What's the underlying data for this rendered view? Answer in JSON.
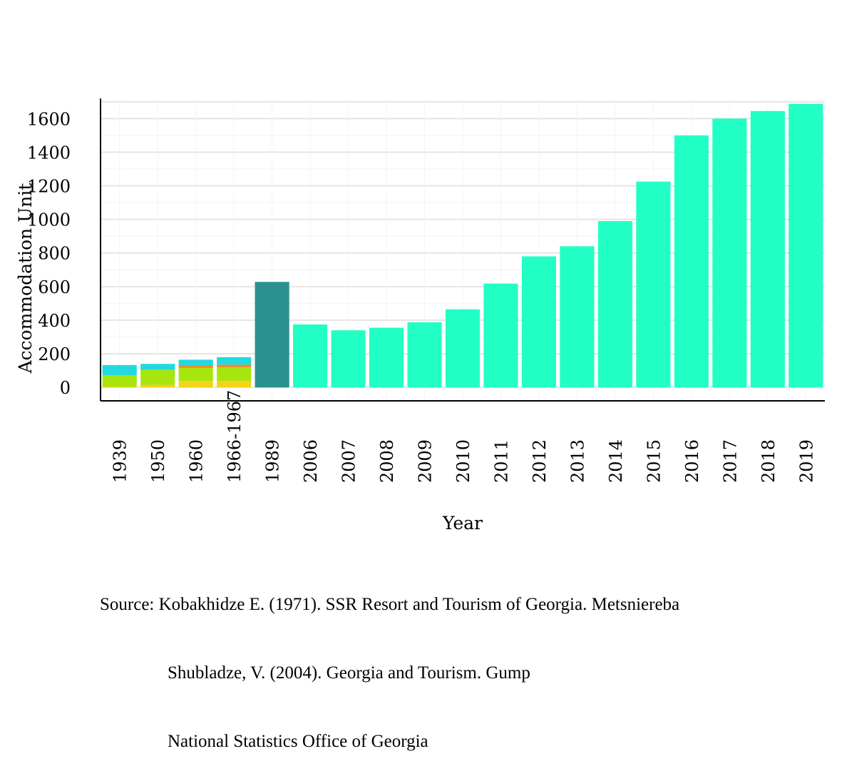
{
  "chart_data": {
    "type": "bar",
    "stacked": true,
    "xlabel": "Year",
    "ylabel": "Accommodation Unit",
    "ylim": [
      -80,
      1720
    ],
    "yticks": [
      0,
      200,
      400,
      600,
      800,
      1000,
      1200,
      1400,
      1600
    ],
    "grid": true,
    "categories": [
      "1939",
      "1950",
      "1960",
      "1966-1967",
      "1989",
      "2006",
      "2007",
      "2008",
      "2009",
      "2010",
      "2011",
      "2012",
      "2013",
      "2014",
      "2015",
      "2016",
      "2017",
      "2018",
      "2019"
    ],
    "series": [
      {
        "color": "#f5d31a",
        "values": [
          5,
          15,
          38,
          38,
          0,
          0,
          0,
          0,
          0,
          0,
          0,
          0,
          0,
          0,
          0,
          0,
          0,
          0,
          0
        ]
      },
      {
        "color": "#a6e60e",
        "values": [
          68,
          90,
          78,
          82,
          0,
          0,
          0,
          0,
          0,
          0,
          0,
          0,
          0,
          0,
          0,
          0,
          0,
          0,
          0
        ]
      },
      {
        "color": "#f08a1e",
        "values": [
          0,
          0,
          12,
          15,
          0,
          0,
          0,
          0,
          0,
          0,
          0,
          0,
          0,
          0,
          0,
          0,
          0,
          0,
          0
        ]
      },
      {
        "color": "#22d9e0",
        "values": [
          60,
          35,
          37,
          45,
          0,
          0,
          0,
          0,
          0,
          0,
          0,
          0,
          0,
          0,
          0,
          0,
          0,
          0,
          0
        ]
      },
      {
        "color": "#2a918f",
        "values": [
          0,
          0,
          0,
          0,
          628,
          0,
          0,
          0,
          0,
          0,
          0,
          0,
          0,
          0,
          0,
          0,
          0,
          0,
          0
        ]
      },
      {
        "color": "#22ffc4",
        "values": [
          0,
          0,
          0,
          0,
          0,
          375,
          340,
          355,
          388,
          465,
          618,
          780,
          840,
          990,
          1225,
          1500,
          1600,
          1645,
          1688
        ]
      }
    ]
  },
  "source": {
    "lines": [
      "Source: Kobakhidze E. (1971). SSR Resort and Tourism of Georgia. Metsniereba",
      "Shubladze, V. (2004). Georgia and Tourism. Gump",
      "National Statistics Office of Georgia"
    ]
  }
}
